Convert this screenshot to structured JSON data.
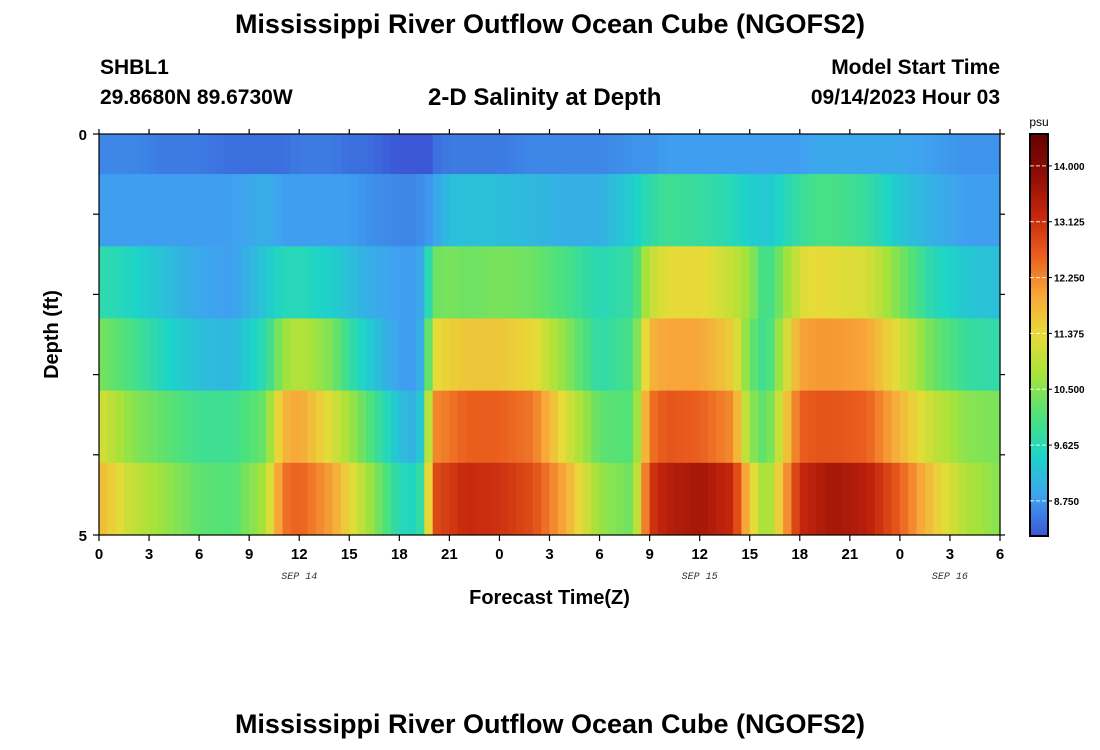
{
  "header": {
    "title": "Mississippi River Outflow Ocean Cube (NGOFS2)",
    "station": "SHBL1",
    "coords": "29.8680N  89.6730W",
    "subtitle": "2-D Salinity at Depth",
    "model_start_label": "Model Start Time",
    "model_start_value": "09/14/2023 Hour 03"
  },
  "footer": {
    "title": "Mississippi River Outflow Ocean Cube (NGOFS2)"
  },
  "chart_data": {
    "type": "heatmap",
    "title": "2-D Salinity at Depth",
    "xlabel": "Forecast Time(Z)",
    "ylabel": "Depth (ft)",
    "x_tick_labels": [
      "0",
      "3",
      "6",
      "9",
      "12",
      "15",
      "18",
      "21",
      "0",
      "3",
      "6",
      "9",
      "12",
      "15",
      "18",
      "21",
      "0",
      "3",
      "6"
    ],
    "date_labels": [
      {
        "label": "SEP 14",
        "hour": 12
      },
      {
        "label": "SEP 15",
        "hour": 36
      },
      {
        "label": "SEP 16",
        "hour": 51
      }
    ],
    "y_tick_labels": [
      "0",
      "5"
    ],
    "ylim": [
      0,
      5
    ],
    "xlim_hours": [
      0,
      54
    ],
    "colorbar": {
      "unit": "psu",
      "ticks": [
        "14.000",
        "13.125",
        "12.250",
        "11.375",
        "10.500",
        "9.625",
        "8.750"
      ],
      "tick_values": [
        14.0,
        13.125,
        12.25,
        11.375,
        10.5,
        9.625,
        8.75
      ],
      "range": [
        8.2,
        14.5
      ],
      "colormap": [
        "#3b57d6",
        "#3fa2f0",
        "#1dd4c8",
        "#4fe27a",
        "#a6e33a",
        "#e7db38",
        "#f8a73a",
        "#ea5d1d",
        "#c4250c",
        "#8e0d06",
        "#660000"
      ]
    },
    "time_hours": [
      0,
      2,
      4,
      6,
      8,
      10,
      11,
      12,
      14,
      15,
      16,
      18,
      19,
      19.5,
      20,
      21,
      22,
      24,
      26,
      28,
      30,
      32,
      33,
      34,
      36,
      38,
      39,
      40,
      42,
      43,
      44,
      46,
      48,
      50,
      52,
      54
    ],
    "layers": [
      {
        "depth_ft": 0.0,
        "values": [
          8.6,
          8.6,
          8.5,
          8.5,
          8.4,
          8.4,
          8.4,
          8.5,
          8.5,
          8.4,
          8.4,
          8.2,
          7.8,
          7.5,
          8.4,
          8.5,
          8.5,
          8.5,
          8.6,
          8.6,
          8.6,
          8.7,
          8.7,
          8.8,
          8.8,
          8.8,
          8.8,
          8.8,
          8.8,
          8.9,
          8.9,
          8.9,
          8.9,
          8.8,
          8.7,
          8.7
        ]
      },
      {
        "depth_ft": 1.0,
        "values": [
          8.8,
          8.8,
          8.8,
          8.8,
          8.8,
          9.0,
          8.8,
          8.8,
          8.8,
          8.8,
          8.7,
          8.6,
          8.6,
          8.7,
          8.8,
          9.2,
          9.2,
          9.2,
          9.1,
          9.0,
          9.0,
          9.4,
          9.7,
          9.9,
          9.8,
          9.6,
          9.4,
          9.3,
          9.8,
          10.0,
          10.0,
          9.8,
          9.3,
          9.0,
          8.8,
          8.8
        ]
      },
      {
        "depth_ft": 2.0,
        "values": [
          9.7,
          9.5,
          9.2,
          8.9,
          8.8,
          9.3,
          9.6,
          9.6,
          9.4,
          9.2,
          9.0,
          8.8,
          8.8,
          9.0,
          10.3,
          10.4,
          10.3,
          10.4,
          10.3,
          10.0,
          9.6,
          9.8,
          11.0,
          11.3,
          11.4,
          11.0,
          10.6,
          9.8,
          11.2,
          11.4,
          11.3,
          11.2,
          10.4,
          9.6,
          9.3,
          9.2
        ]
      },
      {
        "depth_ft": 3.0,
        "values": [
          10.4,
          10.0,
          9.5,
          9.2,
          9.1,
          9.7,
          10.6,
          10.9,
          10.4,
          9.8,
          9.4,
          8.8,
          8.8,
          9.2,
          11.3,
          11.5,
          11.6,
          11.6,
          11.4,
          10.5,
          9.7,
          10.0,
          11.8,
          12.0,
          12.0,
          11.5,
          10.3,
          9.8,
          12.0,
          12.1,
          12.1,
          12.0,
          11.2,
          10.3,
          9.8,
          9.7
        ]
      },
      {
        "depth_ft": 4.0,
        "values": [
          11.2,
          10.5,
          10.2,
          9.9,
          9.9,
          10.3,
          11.8,
          12.0,
          11.2,
          10.7,
          10.2,
          9.2,
          9.0,
          9.6,
          12.2,
          12.4,
          12.6,
          12.6,
          12.4,
          11.2,
          10.2,
          10.1,
          12.4,
          12.7,
          12.6,
          12.2,
          10.6,
          10.1,
          12.6,
          12.7,
          12.7,
          12.6,
          11.8,
          11.0,
          10.5,
          10.4
        ]
      },
      {
        "depth_ft": 5.0,
        "values": [
          11.8,
          11.0,
          10.6,
          10.2,
          10.1,
          10.8,
          12.4,
          12.6,
          12.0,
          11.4,
          10.8,
          9.6,
          9.5,
          10.0,
          12.8,
          13.0,
          13.2,
          13.1,
          12.8,
          11.9,
          10.6,
          10.3,
          13.0,
          13.4,
          13.6,
          13.2,
          11.6,
          10.5,
          13.2,
          13.4,
          13.6,
          13.4,
          12.6,
          11.6,
          10.8,
          10.5
        ]
      }
    ]
  }
}
